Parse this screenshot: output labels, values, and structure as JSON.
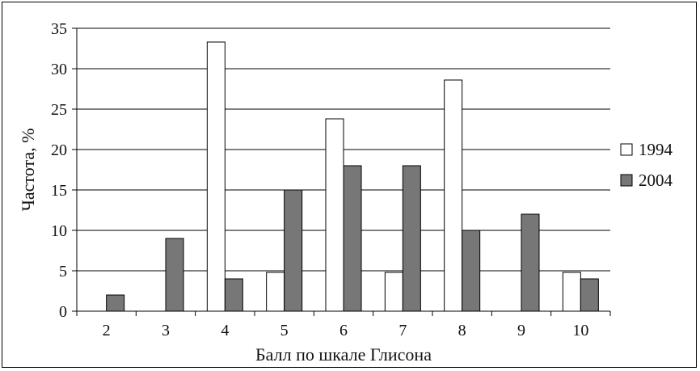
{
  "chart_data": {
    "type": "bar",
    "categories": [
      "2",
      "3",
      "4",
      "5",
      "6",
      "7",
      "8",
      "9",
      "10"
    ],
    "series": [
      {
        "name": "1994",
        "color": "#ffffff",
        "values": [
          0,
          0,
          33.3,
          4.8,
          23.8,
          4.8,
          28.6,
          0,
          4.8
        ]
      },
      {
        "name": "2004",
        "color": "#777777",
        "values": [
          2,
          9,
          4,
          15,
          18,
          18,
          10,
          12,
          4
        ]
      }
    ],
    "xlabel": "Балл по шкале Глисона",
    "ylabel": "Частота, %",
    "ylim": [
      0,
      35
    ],
    "yticks": [
      0,
      5,
      10,
      15,
      20,
      25,
      30,
      35
    ],
    "grid": true,
    "legend_position": "right"
  }
}
